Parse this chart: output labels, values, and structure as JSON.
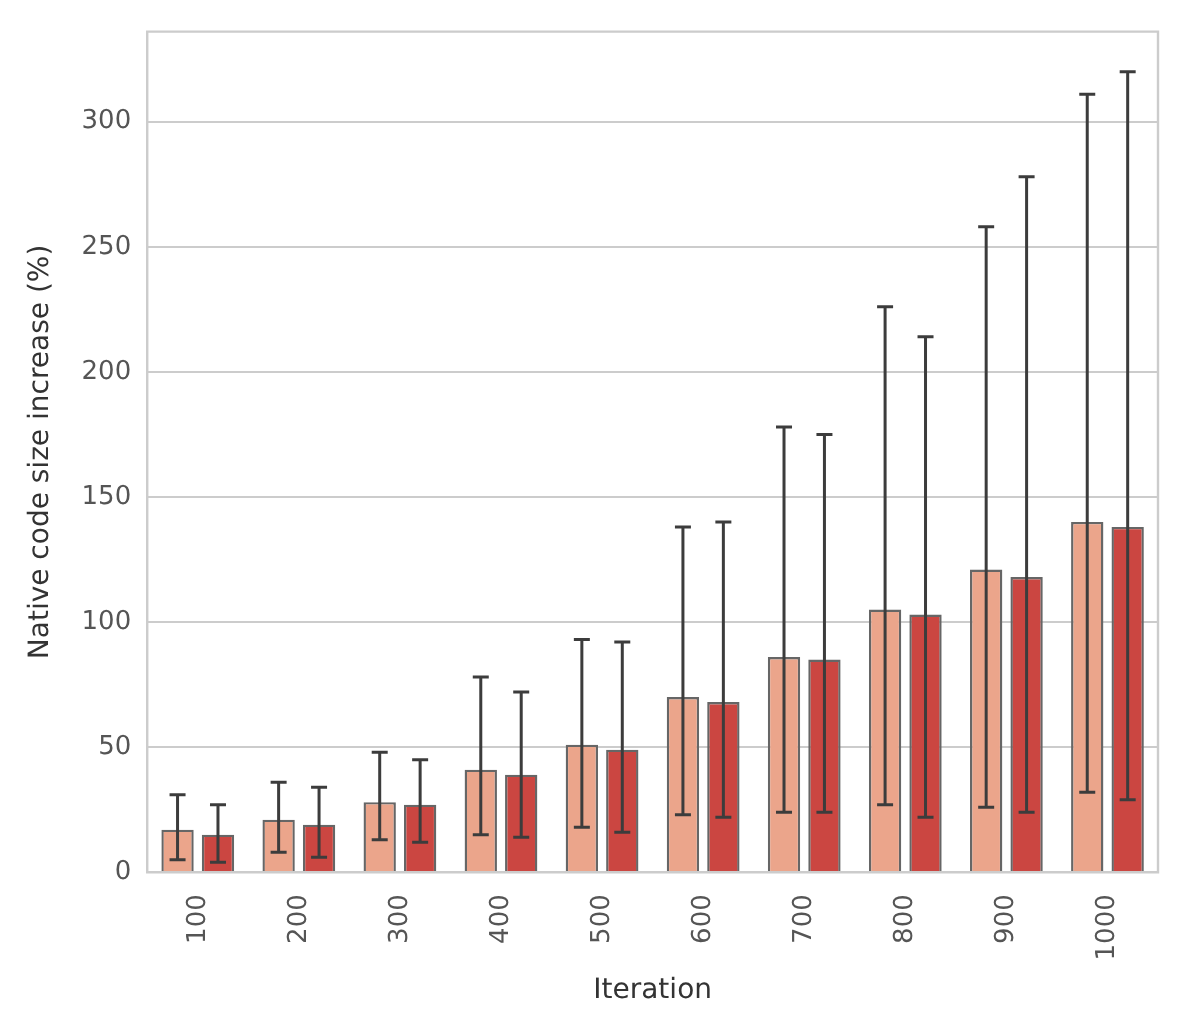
{
  "chart_data": {
    "type": "bar",
    "xlabel": "Iteration",
    "ylabel": "Native code size increase (%)",
    "categories": [
      "100",
      "200",
      "300",
      "400",
      "500",
      "600",
      "700",
      "800",
      "900",
      "1000"
    ],
    "series": [
      {
        "color": "#eba58b",
        "values": [
          17,
          21,
          28,
          41,
          51,
          70,
          86,
          105,
          121,
          140
        ],
        "errors": [
          [
            5,
            31
          ],
          [
            8,
            36
          ],
          [
            13,
            48
          ],
          [
            15,
            78
          ],
          [
            18,
            93
          ],
          [
            23,
            138
          ],
          [
            24,
            178
          ],
          [
            27,
            226
          ],
          [
            26,
            258
          ],
          [
            32,
            311
          ]
        ]
      },
      {
        "color": "#cb4641",
        "values": [
          15,
          19,
          27,
          39,
          49,
          68,
          85,
          103,
          118,
          138
        ],
        "errors": [
          [
            4,
            27
          ],
          [
            6,
            34
          ],
          [
            12,
            45
          ],
          [
            14,
            72
          ],
          [
            16,
            92
          ],
          [
            22,
            140
          ],
          [
            24,
            175
          ],
          [
            22,
            214
          ],
          [
            24,
            278
          ],
          [
            29,
            320
          ]
        ]
      }
    ],
    "ylim": [
      0,
      336
    ],
    "yticks": [
      0,
      50,
      100,
      150,
      200,
      250,
      300
    ],
    "grid": "y"
  }
}
